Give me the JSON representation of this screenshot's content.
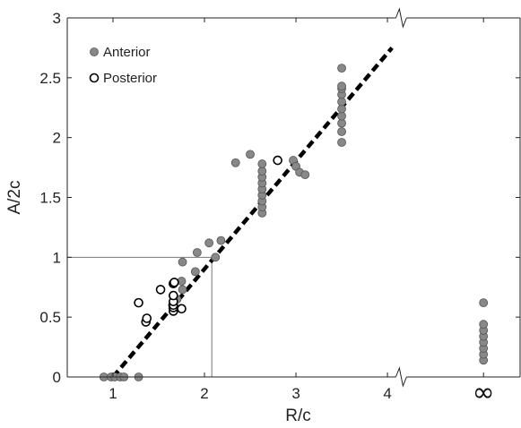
{
  "chart_data": {
    "type": "scatter",
    "xlabel": "R/c",
    "ylabel": "A/2c",
    "xlim": [
      0.5,
      5.45
    ],
    "ylim": [
      0,
      3
    ],
    "x_ticks": [
      {
        "value": 1,
        "label": "1"
      },
      {
        "value": 2,
        "label": "2"
      },
      {
        "value": 3,
        "label": "3"
      },
      {
        "value": 4,
        "label": "4"
      },
      {
        "value": 5.05,
        "label": "∞"
      }
    ],
    "y_ticks": [
      {
        "value": 0,
        "label": "0"
      },
      {
        "value": 0.5,
        "label": "0.5"
      },
      {
        "value": 1,
        "label": "1"
      },
      {
        "value": 1.5,
        "label": "1.5"
      },
      {
        "value": 2,
        "label": "2"
      },
      {
        "value": 2.5,
        "label": "2.5"
      },
      {
        "value": 3,
        "label": "3"
      }
    ],
    "axis_break_at_x": 4.15,
    "legend_position": "top-left",
    "series": [
      {
        "name": "Anterior",
        "marker": "filled-circle",
        "color": "#888888",
        "points": [
          [
            0.9,
            0
          ],
          [
            0.98,
            0
          ],
          [
            1.02,
            0
          ],
          [
            1.08,
            0
          ],
          [
            1.12,
            0
          ],
          [
            1.28,
            0
          ],
          [
            1.65,
            0.6
          ],
          [
            1.7,
            0.65
          ],
          [
            1.75,
            0.8
          ],
          [
            1.76,
            0.96
          ],
          [
            1.76,
            0.73
          ],
          [
            1.9,
            0.88
          ],
          [
            1.92,
            1.04
          ],
          [
            2.05,
            1.12
          ],
          [
            2.12,
            1.0
          ],
          [
            2.18,
            1.14
          ],
          [
            2.34,
            1.79
          ],
          [
            2.5,
            1.86
          ],
          [
            2.63,
            1.37
          ],
          [
            2.63,
            1.42
          ],
          [
            2.63,
            1.47
          ],
          [
            2.63,
            1.52
          ],
          [
            2.63,
            1.57
          ],
          [
            2.63,
            1.62
          ],
          [
            2.63,
            1.67
          ],
          [
            2.63,
            1.72
          ],
          [
            2.63,
            1.78
          ],
          [
            2.97,
            1.81
          ],
          [
            3.0,
            1.76
          ],
          [
            3.04,
            1.71
          ],
          [
            3.1,
            1.69
          ],
          [
            3.5,
            1.96
          ],
          [
            3.5,
            2.05
          ],
          [
            3.5,
            2.12
          ],
          [
            3.5,
            2.18
          ],
          [
            3.5,
            2.24
          ],
          [
            3.5,
            2.3
          ],
          [
            3.5,
            2.36
          ],
          [
            3.5,
            2.41
          ],
          [
            3.5,
            2.43
          ],
          [
            3.5,
            2.58
          ],
          [
            5.05,
            0.14
          ],
          [
            5.05,
            0.19
          ],
          [
            5.05,
            0.24
          ],
          [
            5.05,
            0.29
          ],
          [
            5.05,
            0.34
          ],
          [
            5.05,
            0.39
          ],
          [
            5.05,
            0.44
          ],
          [
            5.05,
            0.62
          ]
        ]
      },
      {
        "name": "Posterior",
        "marker": "open-circle",
        "color": "#000000",
        "points": [
          [
            1.28,
            0.62
          ],
          [
            1.36,
            0.46
          ],
          [
            1.37,
            0.49
          ],
          [
            1.52,
            0.73
          ],
          [
            1.66,
            0.55
          ],
          [
            1.66,
            0.58
          ],
          [
            1.66,
            0.6
          ],
          [
            1.66,
            0.63
          ],
          [
            1.66,
            0.68
          ],
          [
            1.66,
            0.78
          ],
          [
            1.67,
            0.79
          ],
          [
            1.75,
            0.57
          ],
          [
            2.8,
            1.81
          ]
        ]
      }
    ],
    "fit_line": {
      "style": "dashed",
      "color": "#000000",
      "points": [
        [
          1.0,
          0
        ],
        [
          4.05,
          2.75
        ]
      ]
    },
    "reference_lines": [
      {
        "orientation": "horizontal",
        "y": 1,
        "x_from": 0.5,
        "x_to": 2.08
      },
      {
        "orientation": "vertical",
        "x": 2.08,
        "y_from": 0,
        "y_to": 1
      }
    ]
  }
}
